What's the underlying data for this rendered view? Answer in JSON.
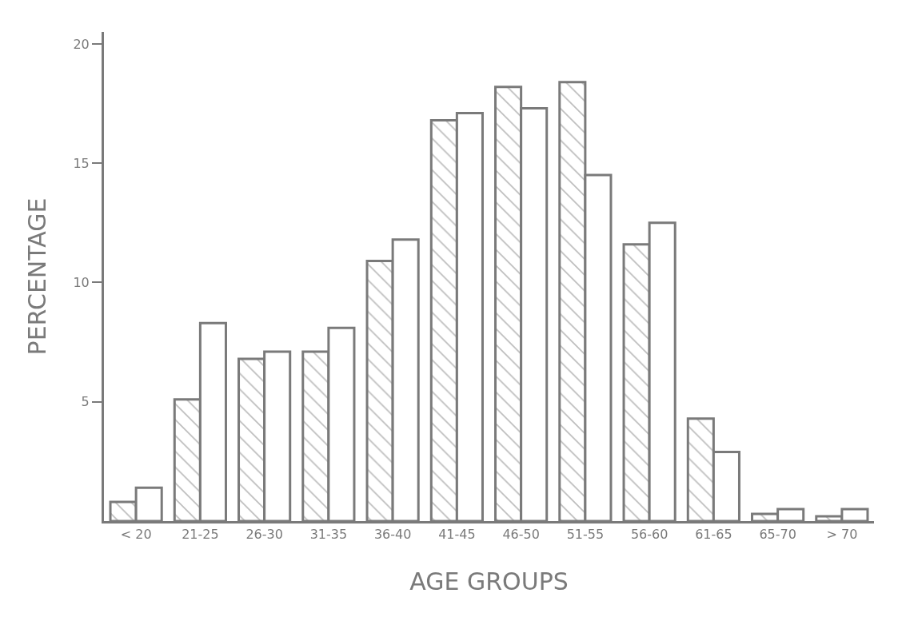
{
  "chart_data": {
    "type": "bar",
    "xlabel": "AGE GROUPS",
    "ylabel": "PERCENTAGE",
    "categories": [
      "< 20",
      "21-25",
      "26-30",
      "31-35",
      "36-40",
      "41-45",
      "46-50",
      "51-55",
      "56-60",
      "61-65",
      "65-70",
      "> 70"
    ],
    "series": [
      {
        "color": "#7a7a7a",
        "values": [
          0.8,
          5.1,
          6.8,
          7.1,
          10.9,
          16.8,
          18.2,
          18.4,
          11.6,
          4.3,
          0.3,
          0.2
        ]
      },
      {
        "color": "#7a7a7a",
        "values": [
          1.4,
          8.3,
          7.1,
          8.1,
          11.8,
          17.1,
          17.3,
          14.5,
          12.5,
          2.9,
          0.5,
          0.5
        ]
      }
    ],
    "ylim": [
      0,
      20.5
    ],
    "yticks": [
      5,
      10,
      15,
      20
    ]
  }
}
